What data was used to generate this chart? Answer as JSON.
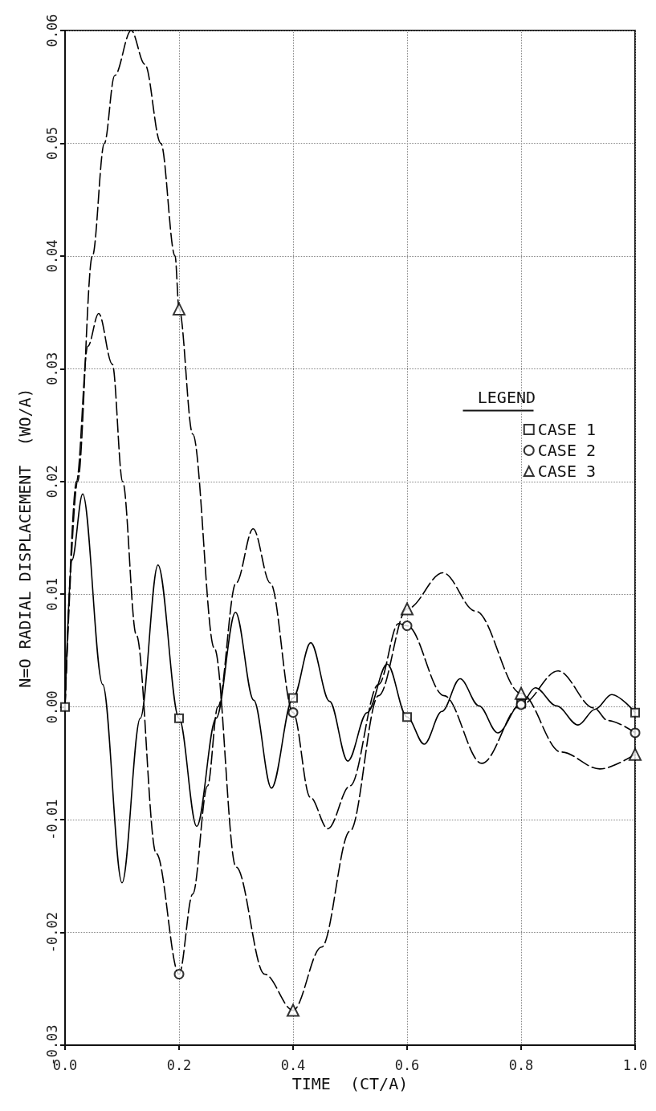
{
  "chart_data": {
    "type": "line",
    "xlabel": "TIME  (CT/A)",
    "ylabel": "N=O RADIAL DISPLACEMENT  (WO/A)",
    "legend_title": "LEGEND",
    "xlim": [
      0,
      1
    ],
    "xticks": [
      {
        "value": 0,
        "label": "0.0"
      },
      0.2,
      0.4,
      0.6,
      0.8,
      {
        "value": 1,
        "label": "1.0"
      }
    ],
    "ylim": [
      -0.03,
      0.06
    ],
    "yticks": [
      -0.03,
      -0.02,
      -0.01,
      {
        "value": 0,
        "label": "0.00"
      },
      0.01,
      0.02,
      0.03,
      0.04,
      0.05,
      0.06
    ],
    "grid": true,
    "legend": "right",
    "series": [
      {
        "color": "#000000",
        "marker": "none",
        "line_style": "solid",
        "x": [
          0,
          0.012,
          0.031,
          0.066,
          0.1,
          0.132,
          0.163,
          0.2,
          0.231,
          0.265,
          0.299,
          0.331,
          0.362,
          0.4,
          0.431,
          0.464,
          0.496,
          0.53,
          0.565,
          0.6,
          0.63,
          0.661,
          0.693,
          0.726,
          0.759,
          0.8,
          0.825,
          0.862,
          0.9,
          0.93,
          0.959,
          1.0
        ],
        "values": [
          0,
          0.013,
          0.0189,
          0.002,
          -0.0156,
          -0.001,
          0.0126,
          -0.001,
          -0.0106,
          -0.001,
          0.0084,
          0.0006,
          -0.0072,
          0.0008,
          0.0057,
          0.0005,
          -0.0048,
          -0.0005,
          0.0038,
          -0.0009,
          -0.0033,
          -0.0004,
          0.0025,
          0.0001,
          -0.0023,
          0.0003,
          0.0017,
          0.0001,
          -0.0016,
          -0.0002,
          0.0011,
          -0.0005
        ]
      },
      {
        "color": "#000000",
        "marker": "none",
        "line_style": "dashed",
        "x": [
          0,
          0.02,
          0.04,
          0.059,
          0.083,
          0.101,
          0.125,
          0.16,
          0.2,
          0.224,
          0.25,
          0.268,
          0.3,
          0.33,
          0.36,
          0.4,
          0.43,
          0.461,
          0.5,
          0.55,
          0.585,
          0.6,
          0.665,
          0.731,
          0.8,
          0.865,
          0.928,
          0.952,
          1.0
        ],
        "values": [
          0,
          0.02,
          0.032,
          0.0349,
          0.0304,
          0.02,
          0.0064,
          -0.013,
          -0.0237,
          -0.0166,
          -0.007,
          0,
          0.011,
          0.0158,
          0.011,
          -0.0005,
          -0.008,
          -0.0108,
          -0.007,
          0.002,
          0.0074,
          0.0072,
          0.001,
          -0.005,
          0.0002,
          0.0032,
          -0.0001,
          -0.0012,
          -0.0023
        ]
      },
      {
        "color": "#000000",
        "marker": "none",
        "line_style": "dashed",
        "x": [
          0,
          0.022,
          0.048,
          0.069,
          0.087,
          0.116,
          0.14,
          0.168,
          0.193,
          0.2,
          0.224,
          0.262,
          0.3,
          0.35,
          0.4,
          0.45,
          0.5,
          0.55,
          0.6,
          0.663,
          0.72,
          0.8,
          0.87,
          0.938,
          1.0
        ],
        "values": [
          0,
          0.02,
          0.04,
          0.05,
          0.056,
          0.06,
          0.057,
          0.05,
          0.04,
          0.0353,
          0.0242,
          0.0052,
          -0.0142,
          -0.0237,
          -0.0269,
          -0.0213,
          -0.011,
          0.001,
          0.0087,
          0.0119,
          0.0085,
          0.0012,
          -0.004,
          -0.0055,
          -0.0042
        ]
      },
      {
        "type": "scatter",
        "name": "CASE 1",
        "color": "#000000",
        "marker": "square",
        "x": [
          0,
          0.2,
          0.4,
          0.6,
          0.8,
          1.0
        ],
        "values": [
          0,
          -0.001,
          0.0008,
          -0.0009,
          0.0003,
          -0.0005
        ]
      },
      {
        "type": "scatter",
        "name": "CASE 2",
        "color": "#000000",
        "marker": "circle",
        "x": [
          0.2,
          0.4,
          0.6,
          0.8,
          1.0
        ],
        "values": [
          -0.0237,
          -0.0005,
          0.0072,
          0.0002,
          -0.0023
        ]
      },
      {
        "type": "scatter",
        "name": "CASE 3",
        "color": "#000000",
        "marker": "triangle",
        "x": [
          0.2,
          0.4,
          0.6,
          0.8,
          1.0
        ],
        "values": [
          0.0353,
          -0.0269,
          0.0087,
          0.0012,
          -0.0042
        ]
      }
    ]
  }
}
